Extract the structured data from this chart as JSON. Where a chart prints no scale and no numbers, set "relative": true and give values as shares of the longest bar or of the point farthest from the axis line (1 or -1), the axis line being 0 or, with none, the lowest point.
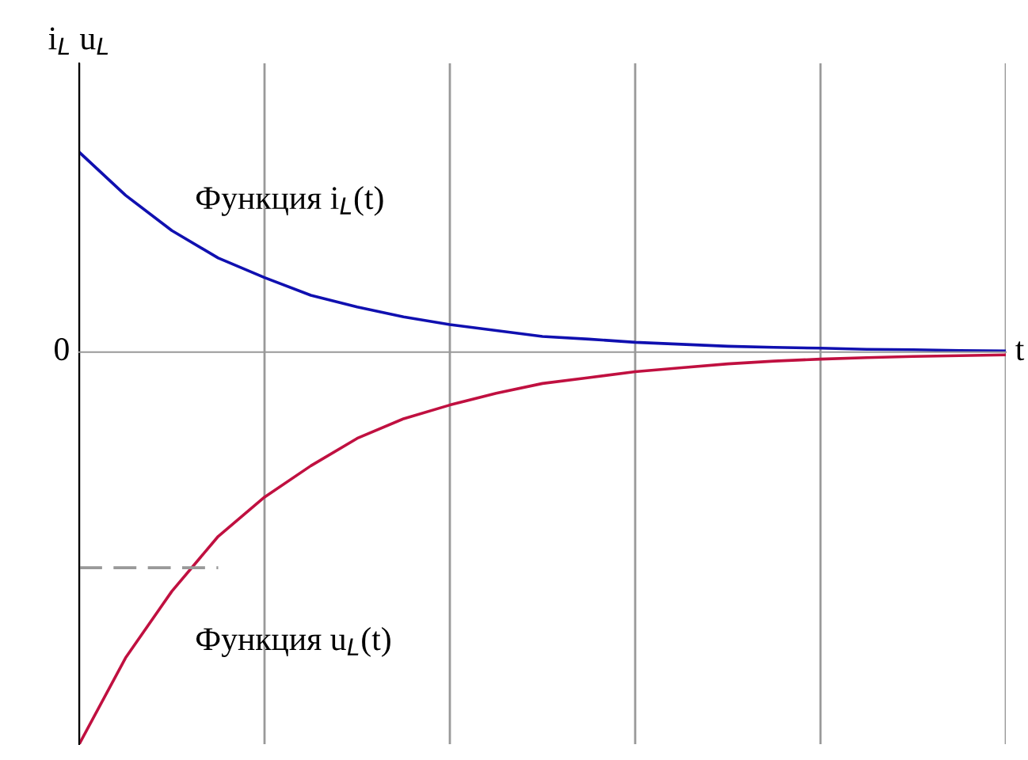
{
  "chart_data": {
    "type": "line",
    "relative": true,
    "xlabel": "t",
    "ylabel": "i$_{L}$ u$_{L}$",
    "categories": [
      null,
      null,
      null,
      null,
      null,
      null,
      null,
      null,
      null,
      null,
      null,
      null,
      null,
      null,
      null,
      null,
      null,
      null,
      null,
      null,
      null
    ],
    "grid": "x",
    "marker": "none",
    "line_style": "solid",
    "series": [
      {
        "color": "#1010b0",
        "values": [
          0.51,
          0.4,
          0.31,
          0.24,
          0.19,
          0.145,
          0.115,
          0.09,
          0.07,
          0.055,
          0.04,
          0.033,
          0.025,
          0.02,
          0.015,
          0.012,
          0.01,
          0.007,
          0.006,
          0.004,
          0.003
        ]
      },
      {
        "color": "#c01040",
        "values": [
          -1,
          -0.78,
          -0.61,
          -0.47,
          -0.37,
          -0.29,
          -0.22,
          -0.17,
          -0.135,
          -0.105,
          -0.08,
          -0.065,
          -0.05,
          -0.04,
          -0.03,
          -0.023,
          -0.018,
          -0.014,
          -0.011,
          -0.009,
          -0.007
        ]
      },
      {
        "color": "#999999",
        "line_style": "dashed",
        "values": [
          -0.55,
          -0.55,
          -0.55,
          -0.55,
          null,
          null,
          null,
          null,
          null,
          null,
          null,
          null,
          null,
          null,
          null,
          null,
          null,
          null,
          null,
          null,
          null
        ]
      }
    ],
    "annotations": [
      "0",
      "Функция i$_{L}$(t)",
      "Функция u$_{L}$(t)"
    ]
  }
}
